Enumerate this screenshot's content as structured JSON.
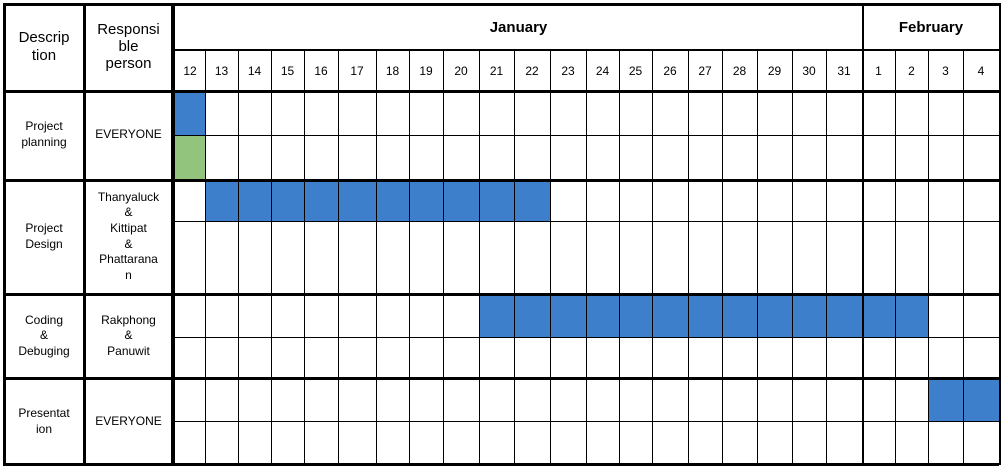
{
  "headers": {
    "description": "Descrip\ntion",
    "responsible": "Responsi\nble\nperson"
  },
  "months": [
    {
      "name": "January"
    },
    {
      "name": "February"
    }
  ],
  "days": [
    "12",
    "13",
    "14",
    "15",
    "16",
    "17",
    "18",
    "19",
    "20",
    "21",
    "22",
    "23",
    "24",
    "25",
    "26",
    "27",
    "28",
    "29",
    "30",
    "31",
    "1",
    "2",
    "3",
    "4"
  ],
  "tasks": [
    {
      "description": "Project\nplanning",
      "responsible": "EVERYONE"
    },
    {
      "description": "Project\nDesign",
      "responsible": "Thanyaluck\n&\nKittipat\n&\nPhattarana\nn"
    },
    {
      "description": "Coding\n&\nDebuging",
      "responsible": "Rakphong\n&\nPanuwit"
    },
    {
      "description": "Presentat\nion",
      "responsible": "EVERYONE"
    }
  ],
  "bars": [
    {
      "task_index": 0,
      "sub_row": 0,
      "start_day_index": 0,
      "end_day_index": 0,
      "color": "#3d7fcb"
    },
    {
      "task_index": 0,
      "sub_row": 1,
      "start_day_index": 0,
      "end_day_index": 0,
      "color": "#93c47d"
    },
    {
      "task_index": 1,
      "sub_row": 0,
      "start_day_index": 1,
      "end_day_index": 10,
      "color": "#3d7fcb"
    },
    {
      "task_index": 2,
      "sub_row": 0,
      "start_day_index": 9,
      "end_day_index": 21,
      "color": "#3d7fcb"
    },
    {
      "task_index": 3,
      "sub_row": 0,
      "start_day_index": 22,
      "end_day_index": 23,
      "color": "#3d7fcb"
    }
  ]
}
